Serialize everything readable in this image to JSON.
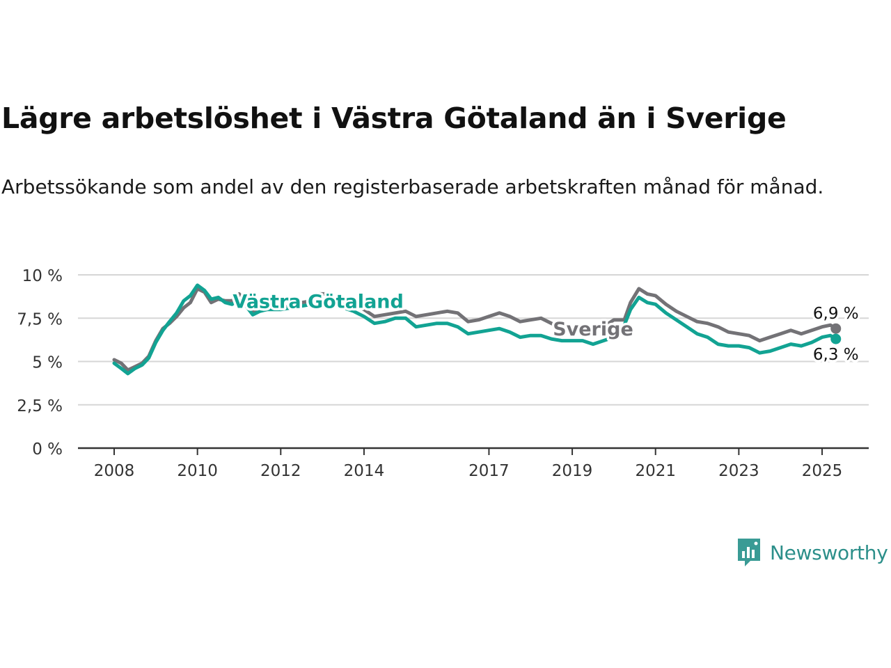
{
  "header": {
    "title": "Lägre arbetslöshet i Västra Götaland än i Sverige",
    "subtitle": "Arbetssökande som andel av den registerbaserade arbetskraften månad för månad."
  },
  "brand": {
    "name": "Newsworthy",
    "color": "#3a9b95"
  },
  "colors": {
    "sverige": "#737276",
    "vg": "#12a393",
    "grid": "#d6d6d6",
    "axis": "#333333"
  },
  "chart_data": {
    "type": "line",
    "ylim": [
      0,
      10
    ],
    "xlim": [
      2008,
      2025.6
    ],
    "y_ticks": [
      {
        "value": 10,
        "label": "10 %"
      },
      {
        "value": 7.5,
        "label": "7,5 %"
      },
      {
        "value": 5,
        "label": "5 %"
      },
      {
        "value": 2.5,
        "label": "2,5 %"
      },
      {
        "value": 0,
        "label": "0 %"
      }
    ],
    "x_ticks": [
      {
        "value": 2008,
        "label": "2008"
      },
      {
        "value": 2010,
        "label": "2010"
      },
      {
        "value": 2012,
        "label": "2012"
      },
      {
        "value": 2014,
        "label": "2014"
      },
      {
        "value": 2017,
        "label": "2017"
      },
      {
        "value": 2019,
        "label": "2019"
      },
      {
        "value": 2021,
        "label": "2021"
      },
      {
        "value": 2023,
        "label": "2023"
      },
      {
        "value": 2025,
        "label": "2025"
      }
    ],
    "grid": true,
    "series": [
      {
        "name": "Sverige",
        "end_label": "6,9 %",
        "points": [
          [
            2008.0,
            5.1
          ],
          [
            2008.17,
            4.9
          ],
          [
            2008.33,
            4.5
          ],
          [
            2008.5,
            4.7
          ],
          [
            2008.67,
            4.9
          ],
          [
            2008.83,
            5.3
          ],
          [
            2009.0,
            6.2
          ],
          [
            2009.17,
            6.9
          ],
          [
            2009.33,
            7.2
          ],
          [
            2009.5,
            7.6
          ],
          [
            2009.67,
            8.1
          ],
          [
            2009.83,
            8.4
          ],
          [
            2010.0,
            9.2
          ],
          [
            2010.17,
            9.0
          ],
          [
            2010.33,
            8.4
          ],
          [
            2010.5,
            8.6
          ],
          [
            2010.67,
            8.5
          ],
          [
            2010.83,
            8.5
          ],
          [
            2011.0,
            8.9
          ],
          [
            2011.17,
            8.4
          ],
          [
            2011.33,
            7.9
          ],
          [
            2011.5,
            8.1
          ],
          [
            2011.67,
            8.2
          ],
          [
            2011.83,
            8.2
          ],
          [
            2012.0,
            8.1
          ],
          [
            2012.25,
            8.2
          ],
          [
            2012.5,
            8.4
          ],
          [
            2012.75,
            8.5
          ],
          [
            2012.9,
            8.9
          ],
          [
            2013.1,
            8.9
          ],
          [
            2013.3,
            8.5
          ],
          [
            2013.5,
            8.3
          ],
          [
            2013.75,
            8.3
          ],
          [
            2014.0,
            8.0
          ],
          [
            2014.25,
            7.6
          ],
          [
            2014.5,
            7.7
          ],
          [
            2014.75,
            7.8
          ],
          [
            2015.0,
            7.9
          ],
          [
            2015.25,
            7.6
          ],
          [
            2015.5,
            7.7
          ],
          [
            2015.75,
            7.8
          ],
          [
            2016.0,
            7.9
          ],
          [
            2016.25,
            7.8
          ],
          [
            2016.5,
            7.3
          ],
          [
            2016.75,
            7.4
          ],
          [
            2017.0,
            7.6
          ],
          [
            2017.25,
            7.8
          ],
          [
            2017.5,
            7.6
          ],
          [
            2017.75,
            7.3
          ],
          [
            2018.0,
            7.4
          ],
          [
            2018.25,
            7.5
          ],
          [
            2018.5,
            7.2
          ],
          [
            2018.75,
            6.9
          ],
          [
            2019.0,
            6.9
          ],
          [
            2019.25,
            6.9
          ],
          [
            2019.5,
            6.9
          ],
          [
            2019.75,
            7.0
          ],
          [
            2020.0,
            7.4
          ],
          [
            2020.25,
            7.4
          ],
          [
            2020.4,
            8.4
          ],
          [
            2020.6,
            9.2
          ],
          [
            2020.8,
            8.9
          ],
          [
            2021.0,
            8.8
          ],
          [
            2021.25,
            8.3
          ],
          [
            2021.5,
            7.9
          ],
          [
            2021.75,
            7.6
          ],
          [
            2022.0,
            7.3
          ],
          [
            2022.25,
            7.2
          ],
          [
            2022.5,
            7.0
          ],
          [
            2022.75,
            6.7
          ],
          [
            2023.0,
            6.6
          ],
          [
            2023.25,
            6.5
          ],
          [
            2023.5,
            6.2
          ],
          [
            2023.75,
            6.4
          ],
          [
            2024.0,
            6.6
          ],
          [
            2024.25,
            6.8
          ],
          [
            2024.5,
            6.6
          ],
          [
            2024.75,
            6.8
          ],
          [
            2025.0,
            7.0
          ],
          [
            2025.2,
            7.1
          ],
          [
            2025.33,
            6.9
          ]
        ]
      },
      {
        "name": "Västra Götaland",
        "end_label": "6,3 %",
        "points": [
          [
            2008.0,
            4.9
          ],
          [
            2008.17,
            4.6
          ],
          [
            2008.33,
            4.3
          ],
          [
            2008.5,
            4.6
          ],
          [
            2008.67,
            4.8
          ],
          [
            2008.83,
            5.2
          ],
          [
            2009.0,
            6.1
          ],
          [
            2009.17,
            6.8
          ],
          [
            2009.33,
            7.3
          ],
          [
            2009.5,
            7.8
          ],
          [
            2009.67,
            8.5
          ],
          [
            2009.83,
            8.8
          ],
          [
            2010.0,
            9.4
          ],
          [
            2010.17,
            9.1
          ],
          [
            2010.33,
            8.6
          ],
          [
            2010.5,
            8.7
          ],
          [
            2010.67,
            8.4
          ],
          [
            2010.83,
            8.3
          ],
          [
            2011.0,
            8.6
          ],
          [
            2011.17,
            8.2
          ],
          [
            2011.33,
            7.7
          ],
          [
            2011.5,
            7.9
          ],
          [
            2011.67,
            8.0
          ],
          [
            2011.83,
            8.0
          ],
          [
            2012.0,
            8.0
          ],
          [
            2012.25,
            8.1
          ],
          [
            2012.5,
            8.2
          ],
          [
            2012.75,
            8.3
          ],
          [
            2013.0,
            8.4
          ],
          [
            2013.25,
            8.3
          ],
          [
            2013.5,
            8.1
          ],
          [
            2013.75,
            7.9
          ],
          [
            2014.0,
            7.6
          ],
          [
            2014.25,
            7.2
          ],
          [
            2014.5,
            7.3
          ],
          [
            2014.75,
            7.5
          ],
          [
            2015.0,
            7.5
          ],
          [
            2015.25,
            7.0
          ],
          [
            2015.5,
            7.1
          ],
          [
            2015.75,
            7.2
          ],
          [
            2016.0,
            7.2
          ],
          [
            2016.25,
            7.0
          ],
          [
            2016.5,
            6.6
          ],
          [
            2016.75,
            6.7
          ],
          [
            2017.0,
            6.8
          ],
          [
            2017.25,
            6.9
          ],
          [
            2017.5,
            6.7
          ],
          [
            2017.75,
            6.4
          ],
          [
            2018.0,
            6.5
          ],
          [
            2018.25,
            6.5
          ],
          [
            2018.5,
            6.3
          ],
          [
            2018.75,
            6.2
          ],
          [
            2019.0,
            6.2
          ],
          [
            2019.25,
            6.2
          ],
          [
            2019.5,
            6.0
          ],
          [
            2019.75,
            6.2
          ],
          [
            2020.0,
            6.4
          ],
          [
            2020.25,
            7.1
          ],
          [
            2020.4,
            8.0
          ],
          [
            2020.6,
            8.7
          ],
          [
            2020.8,
            8.4
          ],
          [
            2021.0,
            8.3
          ],
          [
            2021.25,
            7.8
          ],
          [
            2021.5,
            7.4
          ],
          [
            2021.75,
            7.0
          ],
          [
            2022.0,
            6.6
          ],
          [
            2022.25,
            6.4
          ],
          [
            2022.5,
            6.0
          ],
          [
            2022.75,
            5.9
          ],
          [
            2023.0,
            5.9
          ],
          [
            2023.25,
            5.8
          ],
          [
            2023.5,
            5.5
          ],
          [
            2023.75,
            5.6
          ],
          [
            2024.0,
            5.8
          ],
          [
            2024.25,
            6.0
          ],
          [
            2024.5,
            5.9
          ],
          [
            2024.75,
            6.1
          ],
          [
            2025.0,
            6.4
          ],
          [
            2025.2,
            6.5
          ],
          [
            2025.33,
            6.3
          ]
        ]
      }
    ]
  }
}
